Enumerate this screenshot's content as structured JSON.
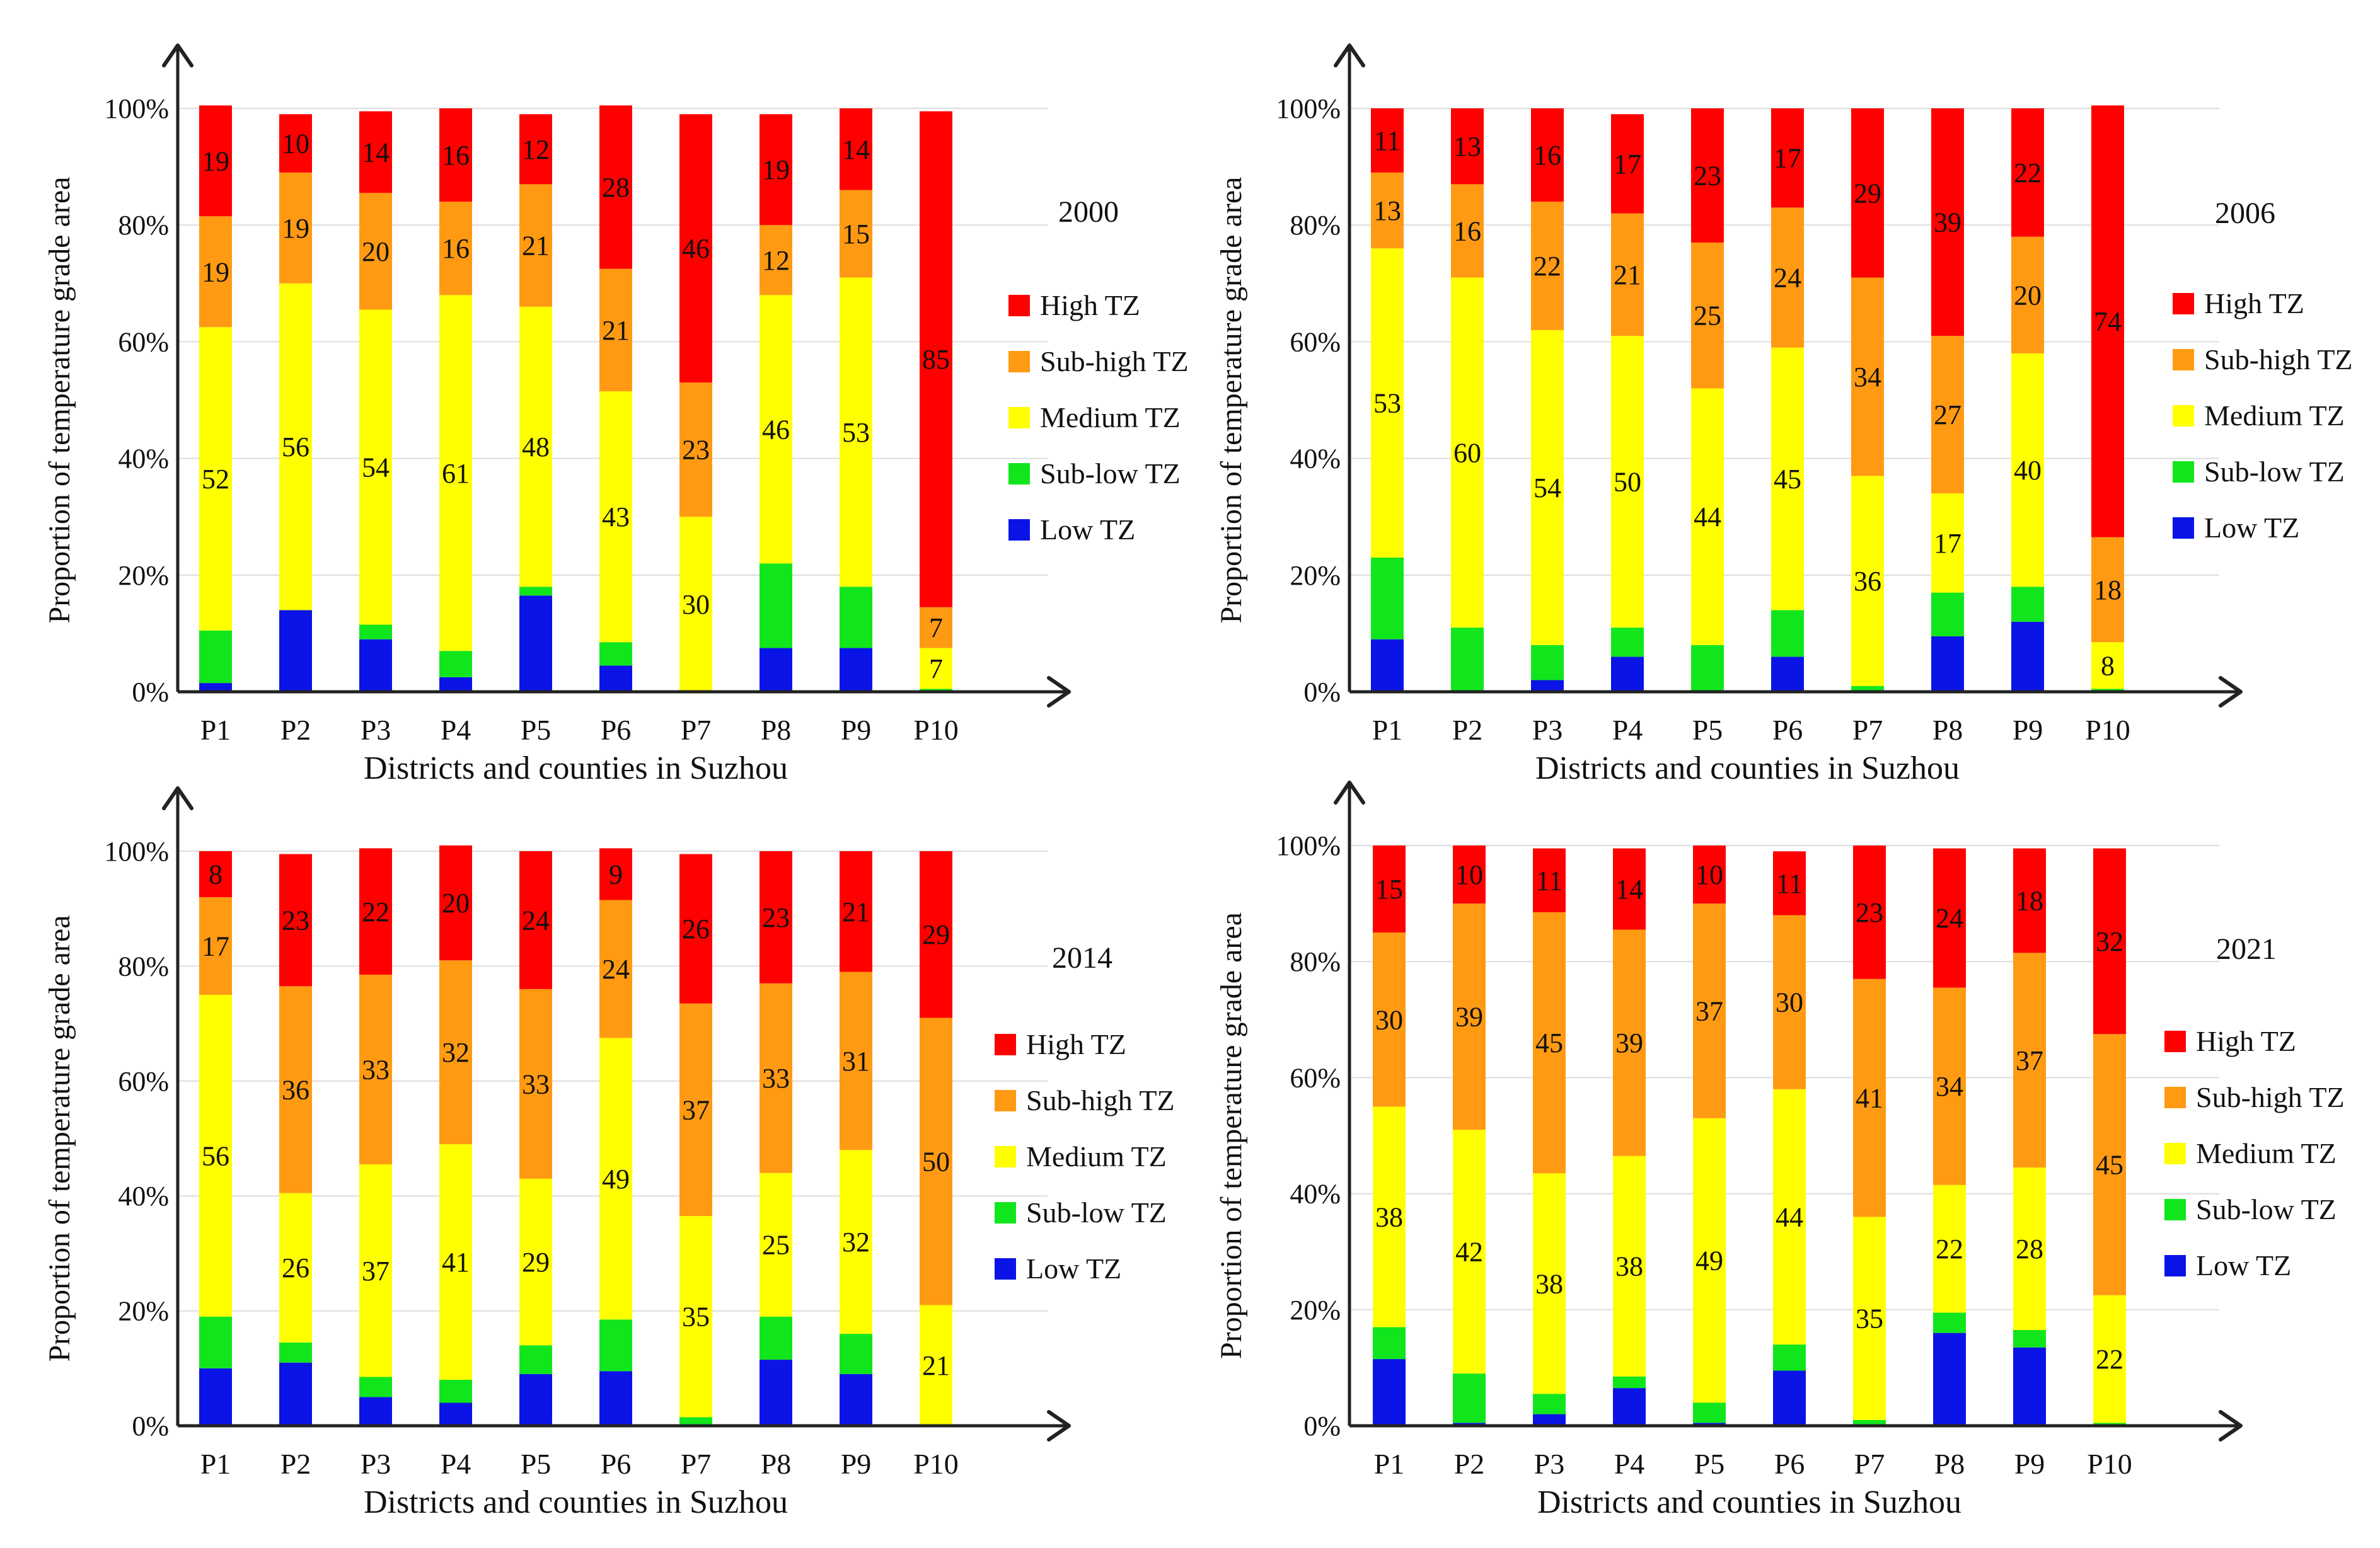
{
  "chart_data": [
    {
      "type": "bar",
      "stacked": true,
      "year": "2000",
      "categories": [
        "P1",
        "P2",
        "P3",
        "P4",
        "P5",
        "P6",
        "P7",
        "P8",
        "P9",
        "P10"
      ],
      "xlabel": "Districts and counties in Suzhou",
      "ylabel": "Proportion of temperature grade area",
      "ylim": [
        0,
        100
      ],
      "yticks": [
        "0%",
        "20%",
        "40%",
        "60%",
        "80%",
        "100%"
      ],
      "series": [
        {
          "name": "Low TZ",
          "color": "#0a14e6",
          "values": [
            1.5,
            14,
            9,
            2.5,
            16.5,
            4.5,
            0,
            7.5,
            7.5,
            0
          ],
          "labels": [
            "",
            "",
            "",
            "",
            "",
            "",
            "",
            "",
            "",
            ""
          ]
        },
        {
          "name": "Sub-low TZ",
          "color": "#11e61d",
          "values": [
            9,
            0,
            2.5,
            4.5,
            1.5,
            4,
            0,
            14.5,
            10.5,
            0.5
          ],
          "labels": [
            "",
            "",
            "",
            "",
            "",
            "",
            "",
            "",
            "",
            ""
          ]
        },
        {
          "name": "Medium TZ",
          "color": "#ffff00",
          "values": [
            52,
            56,
            54,
            61,
            48,
            43,
            30,
            46,
            53,
            7
          ],
          "labels": [
            "52",
            "56",
            "54",
            "61",
            "48",
            "43",
            "30",
            "46",
            "53",
            "7"
          ]
        },
        {
          "name": "Sub-high TZ",
          "color": "#ff9a12",
          "values": [
            19,
            19,
            20,
            16,
            21,
            21,
            23,
            12,
            15,
            7
          ],
          "labels": [
            "19",
            "19",
            "20",
            "16",
            "21",
            "21",
            "23",
            "12",
            "15",
            "7"
          ]
        },
        {
          "name": "High TZ",
          "color": "#ff0000",
          "values": [
            19,
            10,
            14,
            16,
            12,
            28,
            46,
            19,
            14,
            85
          ],
          "labels": [
            "19",
            "10",
            "14",
            "16",
            "12",
            "28",
            "46",
            "19",
            "14",
            "85"
          ]
        }
      ]
    },
    {
      "type": "bar",
      "stacked": true,
      "year": "2006",
      "categories": [
        "P1",
        "P2",
        "P3",
        "P4",
        "P5",
        "P6",
        "P7",
        "P8",
        "P9",
        "P10"
      ],
      "xlabel": "Districts and counties in Suzhou",
      "ylabel": "Proportion of temperature grade area",
      "ylim": [
        0,
        100
      ],
      "yticks": [
        "0%",
        "20%",
        "40%",
        "60%",
        "80%",
        "100%"
      ],
      "series": [
        {
          "name": "Low TZ",
          "color": "#0a14e6",
          "values": [
            9,
            0,
            2,
            6,
            0,
            6,
            0,
            9.5,
            12,
            0
          ],
          "labels": [
            "",
            "",
            "",
            "",
            "",
            "",
            "",
            "",
            "",
            ""
          ]
        },
        {
          "name": "Sub-low TZ",
          "color": "#11e61d",
          "values": [
            14,
            11,
            6,
            5,
            8,
            8,
            1,
            7.5,
            6,
            0.5
          ],
          "labels": [
            "",
            "",
            "",
            "",
            "",
            "",
            "",
            "",
            "",
            ""
          ]
        },
        {
          "name": "Medium TZ",
          "color": "#ffff00",
          "values": [
            53,
            60,
            54,
            50,
            44,
            45,
            36,
            17,
            40,
            8
          ],
          "labels": [
            "53",
            "60",
            "54",
            "50",
            "44",
            "45",
            "36",
            "17",
            "40",
            "8"
          ]
        },
        {
          "name": "Sub-high TZ",
          "color": "#ff9a12",
          "values": [
            13,
            16,
            22,
            21,
            25,
            24,
            34,
            27,
            20,
            18
          ],
          "labels": [
            "13",
            "16",
            "22",
            "21",
            "25",
            "24",
            "34",
            "27",
            "20",
            "18"
          ]
        },
        {
          "name": "High TZ",
          "color": "#ff0000",
          "values": [
            11,
            13,
            16,
            17,
            23,
            17,
            29,
            39,
            22,
            74
          ],
          "labels": [
            "11",
            "13",
            "16",
            "17",
            "23",
            "17",
            "29",
            "39",
            "22",
            "74"
          ]
        }
      ]
    },
    {
      "type": "bar",
      "stacked": true,
      "year": "2014",
      "categories": [
        "P1",
        "P2",
        "P3",
        "P4",
        "P5",
        "P6",
        "P7",
        "P8",
        "P9",
        "P10"
      ],
      "xlabel": "Districts and counties in Suzhou",
      "ylabel": "Proportion of temperature grade area",
      "ylim": [
        0,
        100
      ],
      "yticks": [
        "0%",
        "20%",
        "40%",
        "60%",
        "80%",
        "100%"
      ],
      "series": [
        {
          "name": "Low TZ",
          "color": "#0a14e6",
          "values": [
            10,
            11,
            5,
            4,
            9,
            9.5,
            0,
            11.5,
            9,
            0
          ],
          "labels": [
            "",
            "",
            "",
            "",
            "",
            "",
            "",
            "",
            "",
            ""
          ]
        },
        {
          "name": "Sub-low TZ",
          "color": "#11e61d",
          "values": [
            9,
            3.5,
            3.5,
            4,
            5,
            9,
            1.5,
            7.5,
            7,
            0
          ],
          "labels": [
            "",
            "",
            "",
            "",
            "",
            "",
            "",
            "",
            "",
            ""
          ]
        },
        {
          "name": "Medium TZ",
          "color": "#ffff00",
          "values": [
            56,
            26,
            37,
            41,
            29,
            49,
            35,
            25,
            32,
            21
          ],
          "labels": [
            "56",
            "26",
            "37",
            "41",
            "29",
            "49",
            "35",
            "25",
            "32",
            "21"
          ]
        },
        {
          "name": "Sub-high TZ",
          "color": "#ff9a12",
          "values": [
            17,
            36,
            33,
            32,
            33,
            24,
            37,
            33,
            31,
            50
          ],
          "labels": [
            "17",
            "36",
            "33",
            "32",
            "33",
            "24",
            "37",
            "33",
            "31",
            "50"
          ]
        },
        {
          "name": "High TZ",
          "color": "#ff0000",
          "values": [
            8,
            23,
            22,
            20,
            24,
            9,
            26,
            23,
            21,
            29
          ],
          "labels": [
            "8",
            "23",
            "22",
            "20",
            "24",
            "9",
            "26",
            "23",
            "21",
            "29"
          ]
        }
      ]
    },
    {
      "type": "bar",
      "stacked": true,
      "year": "2021",
      "categories": [
        "P1",
        "P2",
        "P3",
        "P4",
        "P5",
        "P6",
        "P7",
        "P8",
        "P9",
        "P10"
      ],
      "xlabel": "Districts and counties in Suzhou",
      "ylabel": "Proportion of temperature grade area",
      "ylim": [
        0,
        100
      ],
      "yticks": [
        "0%",
        "20%",
        "40%",
        "60%",
        "80%",
        "100%"
      ],
      "series": [
        {
          "name": "Low TZ",
          "color": "#0a14e6",
          "values": [
            11.5,
            0.5,
            2,
            6.5,
            0.5,
            9.5,
            0,
            16,
            13.5,
            0
          ],
          "labels": [
            "",
            "",
            "",
            "",
            "",
            "",
            "",
            "",
            "",
            ""
          ]
        },
        {
          "name": "Sub-low TZ",
          "color": "#11e61d",
          "values": [
            5.5,
            8.5,
            3.5,
            2,
            3.5,
            4.5,
            1,
            3.5,
            3,
            0.5
          ],
          "labels": [
            "",
            "",
            "",
            "",
            "",
            "",
            "",
            "",
            "",
            ""
          ]
        },
        {
          "name": "Medium TZ",
          "color": "#ffff00",
          "values": [
            38,
            42,
            38,
            38,
            49,
            44,
            35,
            22,
            28,
            22
          ],
          "labels": [
            "38",
            "42",
            "38",
            "38",
            "49",
            "44",
            "35",
            "22",
            "28",
            "22"
          ]
        },
        {
          "name": "Sub-high TZ",
          "color": "#ff9a12",
          "values": [
            30,
            39,
            45,
            39,
            37,
            30,
            41,
            34,
            37,
            45
          ],
          "labels": [
            "30",
            "39",
            "45",
            "39",
            "37",
            "30",
            "41",
            "34",
            "37",
            "45"
          ]
        },
        {
          "name": "High TZ",
          "color": "#ff0000",
          "values": [
            15,
            10,
            11,
            14,
            10,
            11,
            23,
            24,
            18,
            32
          ],
          "labels": [
            "15",
            "10",
            "11",
            "14",
            "10",
            "11",
            "23",
            "24",
            "18",
            "32"
          ]
        }
      ]
    }
  ]
}
